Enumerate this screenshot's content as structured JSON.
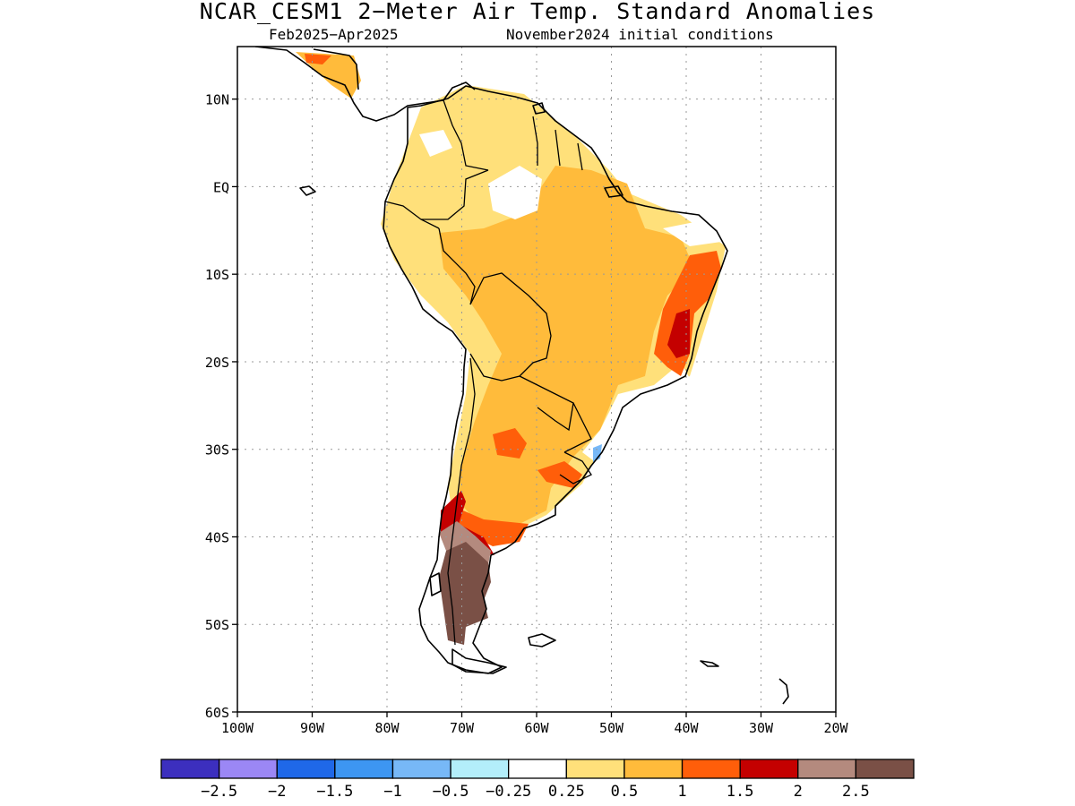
{
  "title": "NCAR_CESM1 2−Meter Air Temp. Standard Anomalies",
  "subtitle_left": "Feb2025−Apr2025",
  "subtitle_right": "November2024 initial conditions",
  "map": {
    "lon_range": [
      -100,
      -20
    ],
    "lat_range": [
      -60,
      16
    ],
    "lat_ticks": [
      {
        "value": 10,
        "label": "10N"
      },
      {
        "value": 0,
        "label": "EQ"
      },
      {
        "value": -10,
        "label": "10S"
      },
      {
        "value": -20,
        "label": "20S"
      },
      {
        "value": -30,
        "label": "30S"
      },
      {
        "value": -40,
        "label": "40S"
      },
      {
        "value": -50,
        "label": "50S"
      },
      {
        "value": -60,
        "label": "60S"
      }
    ],
    "lon_ticks": [
      {
        "value": -100,
        "label": "100W"
      },
      {
        "value": -90,
        "label": "90W"
      },
      {
        "value": -80,
        "label": "80W"
      },
      {
        "value": -70,
        "label": "70W"
      },
      {
        "value": -60,
        "label": "60W"
      },
      {
        "value": -50,
        "label": "50W"
      },
      {
        "value": -40,
        "label": "40W"
      },
      {
        "value": -30,
        "label": "30W"
      },
      {
        "value": -20,
        "label": "20W"
      }
    ],
    "grid": "dotted"
  },
  "colorbar": {
    "colors": [
      "#3c2fbe",
      "#9b87f5",
      "#1f68e8",
      "#3d96f2",
      "#77b8f7",
      "#b3eefa",
      "#ffffff",
      "#ffe07a",
      "#ffbb3b",
      "#ff5e0a",
      "#c40000",
      "#b48a7e",
      "#7a5046"
    ],
    "labels": [
      "−2.5",
      "−2",
      "−1.5",
      "−1",
      "−0.5",
      "−0.25",
      "0.25",
      "0.5",
      "1",
      "1.5",
      "2",
      "2.5"
    ]
  }
}
